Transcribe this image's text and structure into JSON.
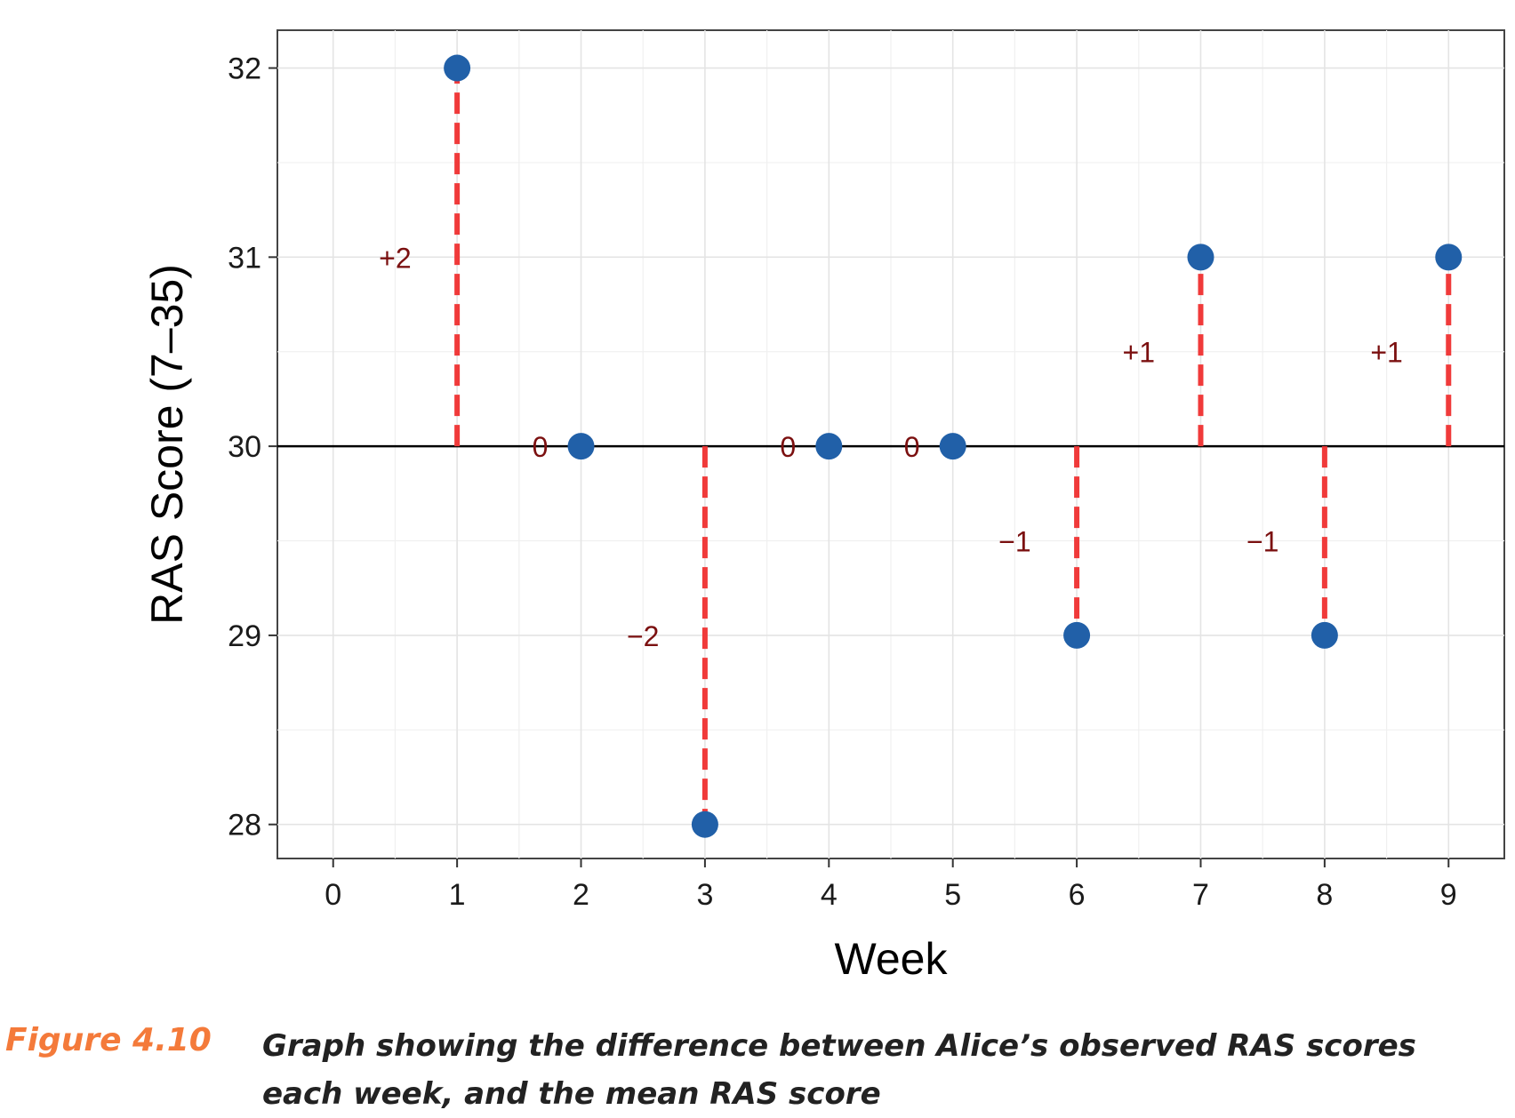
{
  "chart_data": {
    "type": "scatter",
    "xlabel": "Week",
    "ylabel": "RAS Score (7–35)",
    "xlim": [
      -0.45,
      9.45
    ],
    "ylim": [
      27.82,
      32.2
    ],
    "x_ticks": [
      "0",
      "1",
      "2",
      "3",
      "4",
      "5",
      "6",
      "7",
      "8",
      "9"
    ],
    "y_ticks": [
      "28",
      "29",
      "30",
      "31",
      "32"
    ],
    "mean_line": 30,
    "grid": true,
    "points": [
      {
        "x": 1,
        "y": 32,
        "label": "+2"
      },
      {
        "x": 2,
        "y": 30,
        "label": "0"
      },
      {
        "x": 3,
        "y": 28,
        "label": "−2"
      },
      {
        "x": 4,
        "y": 30,
        "label": "0"
      },
      {
        "x": 5,
        "y": 30,
        "label": "0"
      },
      {
        "x": 6,
        "y": 29,
        "label": "−1"
      },
      {
        "x": 7,
        "y": 31,
        "label": "+1"
      },
      {
        "x": 8,
        "y": 29,
        "label": "−1"
      },
      {
        "x": 9,
        "y": 31,
        "label": "+1"
      }
    ],
    "colors": {
      "point": "#2160a8",
      "residual": "#f03a3a",
      "diff_label": "#7b1010",
      "mean_line": "#000000",
      "grid": "#e4e4e4"
    }
  },
  "caption": {
    "figure_label": "Figure 4.10",
    "text": "Graph showing the difference between Alice’s observed RAS scores each week, and the mean RAS score"
  }
}
